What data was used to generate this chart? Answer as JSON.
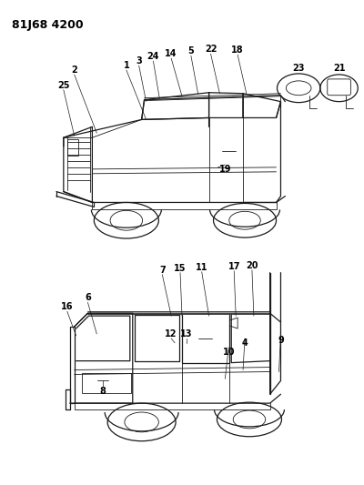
{
  "title": "81J68 4200",
  "bg_color": "#ffffff",
  "line_color": "#1a1a1a",
  "text_color": "#000000",
  "title_fontsize": 9,
  "label_fontsize": 7,
  "fig_width": 4.0,
  "fig_height": 5.33,
  "dpi": 100
}
